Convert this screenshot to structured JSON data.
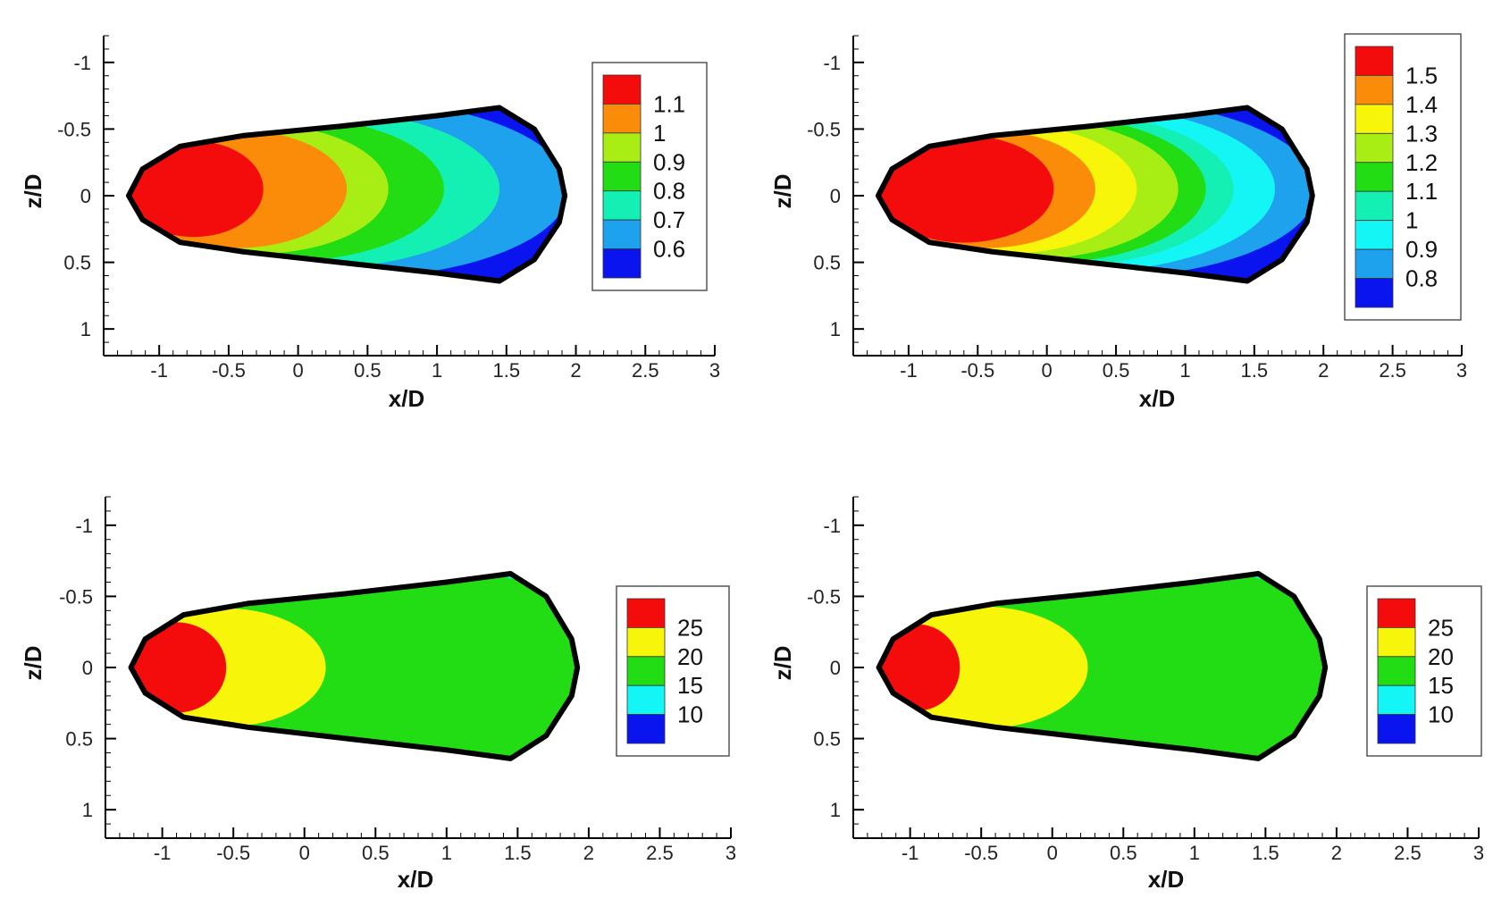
{
  "colors": {
    "red": "#f40c0c",
    "orange": "#fb8c0a",
    "yellow": "#f6f50a",
    "yellowgreen": "#a8ee14",
    "green": "#22dc14",
    "aqua": "#14f0b4",
    "cyan": "#14f6f6",
    "lightblue": "#1ea2ee",
    "blue": "#0a14ee",
    "outline": "#000000"
  },
  "chart_data": [
    {
      "type": "heatmap",
      "title": "",
      "xlabel": "x/D",
      "ylabel": "z/D",
      "xlim": [
        -1.4,
        3
      ],
      "ylim": [
        1.2,
        -1.2
      ],
      "xticks": [
        "-1",
        "-0.5",
        "0",
        "0.5",
        "1",
        "1.5",
        "2",
        "2.5",
        "3"
      ],
      "yticks": [
        "-1",
        "-0.5",
        "0",
        "0.5",
        "1"
      ],
      "legend_position": "right",
      "legend": [
        {
          "label": "1.1",
          "color": "red"
        },
        {
          "label": "1",
          "color": "orange"
        },
        {
          "label": "0.9",
          "color": "yellowgreen"
        },
        {
          "label": "0.8",
          "color": "green"
        },
        {
          "label": "0.7",
          "color": "aqua"
        },
        {
          "label": "0.6",
          "color": "lightblue"
        },
        {
          "label": "",
          "color": "blue"
        }
      ],
      "levels": [
        {
          "color": "lightblue",
          "dx": 1.85,
          "rx": 3.2
        },
        {
          "color": "aqua",
          "dx": 1.38,
          "rx": 2.7
        },
        {
          "color": "green",
          "dx": 1.02,
          "rx": 2.3
        },
        {
          "color": "yellowgreen",
          "dx": 0.7,
          "rx": 1.9
        },
        {
          "color": "orange",
          "dx": 0.4,
          "rx": 1.6
        },
        {
          "color": "red",
          "dx": 0.0,
          "rx": 1.0
        }
      ]
    },
    {
      "type": "heatmap",
      "title": "",
      "xlabel": "x/D",
      "ylabel": "z/D",
      "xlim": [
        -1.4,
        3
      ],
      "ylim": [
        1.2,
        -1.2
      ],
      "xticks": [
        "-1",
        "-0.5",
        "0",
        "0.5",
        "1",
        "1.5",
        "2",
        "2.5",
        "3"
      ],
      "yticks": [
        "-1",
        "-0.5",
        "0",
        "0.5",
        "1"
      ],
      "legend_position": "right",
      "legend": [
        {
          "label": "1.5",
          "color": "red"
        },
        {
          "label": "1.4",
          "color": "orange"
        },
        {
          "label": "1.3",
          "color": "yellow"
        },
        {
          "label": "1.2",
          "color": "yellowgreen"
        },
        {
          "label": "1.1",
          "color": "green"
        },
        {
          "label": "1",
          "color": "aqua"
        },
        {
          "label": "0.9",
          "color": "cyan"
        },
        {
          "label": "0.8",
          "color": "lightblue"
        },
        {
          "label": "",
          "color": "blue"
        }
      ],
      "levels": [
        {
          "color": "lightblue",
          "dx": 1.82,
          "rx": 3.2
        },
        {
          "color": "cyan",
          "dx": 1.5,
          "rx": 2.9
        },
        {
          "color": "aqua",
          "dx": 1.18,
          "rx": 2.6
        },
        {
          "color": "green",
          "dx": 1.02,
          "rx": 2.4
        },
        {
          "color": "yellowgreen",
          "dx": 0.9,
          "rx": 2.2
        },
        {
          "color": "yellow",
          "dx": 0.68,
          "rx": 1.9
        },
        {
          "color": "orange",
          "dx": 0.45,
          "rx": 1.6
        },
        {
          "color": "red",
          "dx": 0.25,
          "rx": 1.3
        }
      ]
    },
    {
      "type": "heatmap",
      "title": "",
      "xlabel": "x/D",
      "ylabel": "z/D",
      "xlim": [
        -1.4,
        3
      ],
      "ylim": [
        1.2,
        -1.2
      ],
      "xticks": [
        "-1",
        "-0.5",
        "0",
        "0.5",
        "1",
        "1.5",
        "2",
        "2.5",
        "3"
      ],
      "yticks": [
        "-1",
        "-0.5",
        "0",
        "0.5",
        "1"
      ],
      "legend_position": "right",
      "legend": [
        {
          "label": "25",
          "color": "red"
        },
        {
          "label": "20",
          "color": "yellow"
        },
        {
          "label": "15",
          "color": "green"
        },
        {
          "label": "10",
          "color": "cyan"
        },
        {
          "label": "",
          "color": "blue"
        }
      ],
      "levels": [
        {
          "color": "green",
          "dx": 0.0,
          "rx": 3.6
        },
        {
          "color": "yellow",
          "dx": 0.0,
          "rx": 1.4
        },
        {
          "color": "red",
          "dx": 0.0,
          "rx": 0.7
        }
      ]
    },
    {
      "type": "heatmap",
      "title": "",
      "xlabel": "x/D",
      "ylabel": "z/D",
      "xlim": [
        -1.4,
        3
      ],
      "ylim": [
        1.2,
        -1.2
      ],
      "xticks": [
        "-1",
        "-0.5",
        "0",
        "0.5",
        "1",
        "1.5",
        "2",
        "2.5",
        "3"
      ],
      "yticks": [
        "-1",
        "-0.5",
        "0",
        "0.5",
        "1"
      ],
      "legend_position": "right",
      "legend": [
        {
          "label": "25",
          "color": "red"
        },
        {
          "label": "20",
          "color": "yellow"
        },
        {
          "label": "15",
          "color": "green"
        },
        {
          "label": "10",
          "color": "cyan"
        },
        {
          "label": "",
          "color": "blue"
        }
      ],
      "levels": [
        {
          "color": "green",
          "dx": 0.0,
          "rx": 3.6
        },
        {
          "color": "yellow",
          "dx": 0.0,
          "rx": 1.5
        },
        {
          "color": "red",
          "dx": 0.0,
          "rx": 0.6
        }
      ]
    }
  ]
}
